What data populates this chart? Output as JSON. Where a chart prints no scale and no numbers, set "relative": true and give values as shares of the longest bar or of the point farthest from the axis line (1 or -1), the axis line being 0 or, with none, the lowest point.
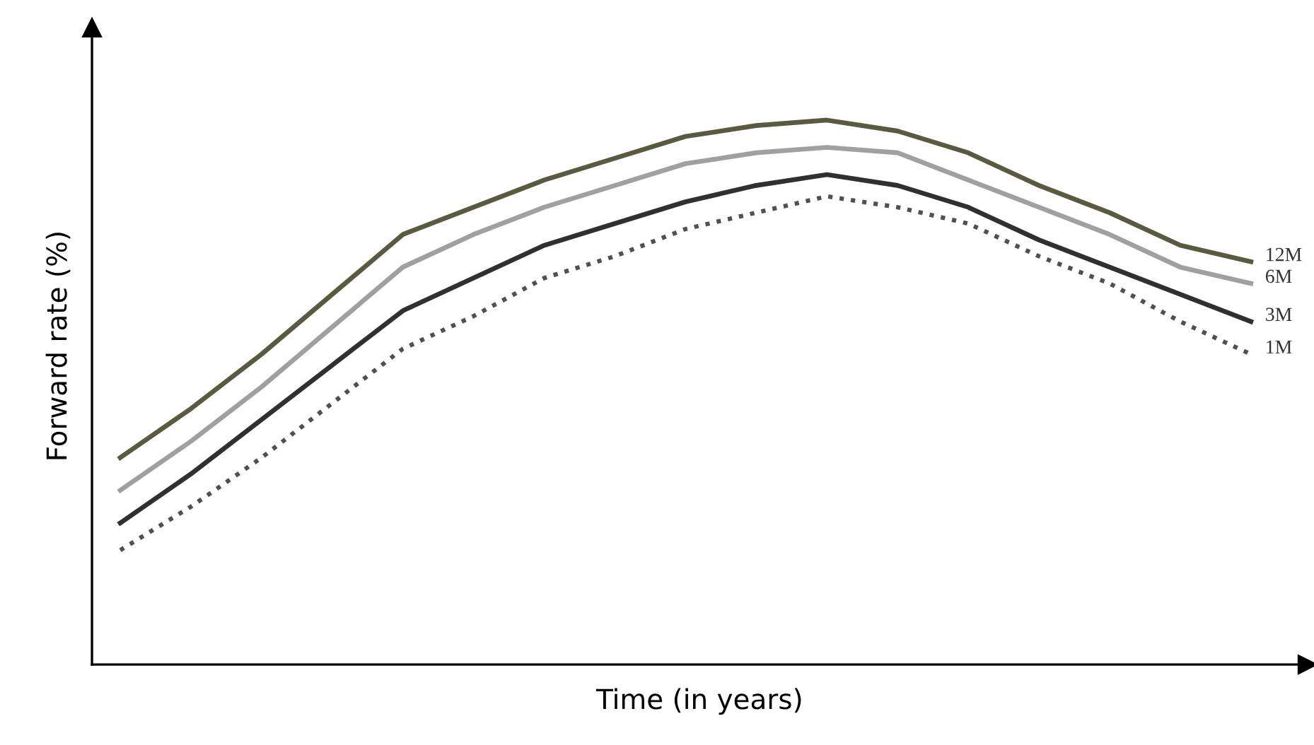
{
  "chart_data": {
    "type": "line",
    "xlabel": "Time (in years)",
    "ylabel": "Forward rate (%)",
    "relative": true,
    "legend": false,
    "marker": "none",
    "categories": [
      null,
      null,
      null,
      null,
      null,
      null,
      null,
      null,
      null,
      null,
      null,
      null,
      null,
      null,
      null,
      null,
      null
    ],
    "series": [
      {
        "name": "12M",
        "color": "#5a5a40",
        "line_style": "solid",
        "values": [
          0.38,
          0.47,
          0.57,
          0.68,
          0.79,
          0.84,
          0.89,
          0.93,
          0.97,
          0.99,
          1.0,
          0.98,
          0.94,
          0.88,
          0.83,
          0.77,
          0.74
        ]
      },
      {
        "name": "6M",
        "color": "#a0a0a0",
        "line_style": "solid",
        "values": [
          0.32,
          0.41,
          0.51,
          0.62,
          0.73,
          0.79,
          0.84,
          0.88,
          0.92,
          0.94,
          0.95,
          0.94,
          0.89,
          0.84,
          0.79,
          0.73,
          0.7
        ]
      },
      {
        "name": "3M",
        "color": "#303030",
        "line_style": "solid",
        "values": [
          0.26,
          0.35,
          0.45,
          0.55,
          0.65,
          0.71,
          0.77,
          0.81,
          0.85,
          0.88,
          0.9,
          0.88,
          0.84,
          0.78,
          0.73,
          0.68,
          0.63
        ]
      },
      {
        "name": "1M",
        "color": "#505050",
        "line_style": "dotted",
        "values": [
          0.21,
          0.29,
          0.38,
          0.48,
          0.58,
          0.64,
          0.71,
          0.75,
          0.8,
          0.83,
          0.86,
          0.84,
          0.81,
          0.75,
          0.7,
          0.63,
          0.57
        ]
      }
    ]
  }
}
